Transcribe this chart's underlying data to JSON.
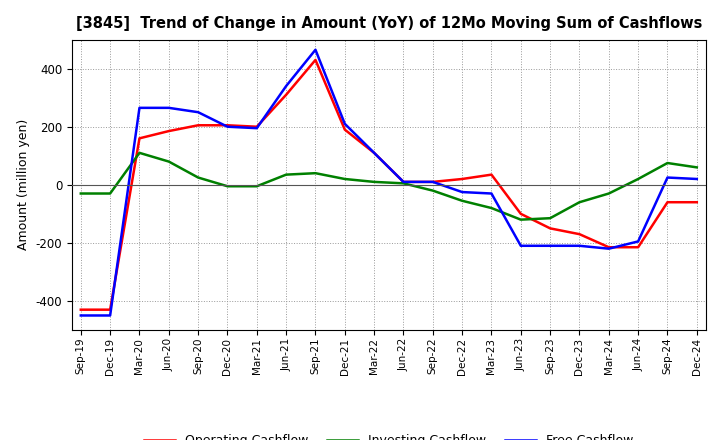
{
  "title": "[3845]  Trend of Change in Amount (YoY) of 12Mo Moving Sum of Cashflows",
  "ylabel": "Amount (million yen)",
  "x_labels": [
    "Sep-19",
    "Dec-19",
    "Mar-20",
    "Jun-20",
    "Sep-20",
    "Dec-20",
    "Mar-21",
    "Jun-21",
    "Sep-21",
    "Dec-21",
    "Mar-22",
    "Jun-22",
    "Sep-22",
    "Dec-22",
    "Mar-23",
    "Jun-23",
    "Sep-23",
    "Dec-23",
    "Mar-24",
    "Jun-24",
    "Sep-24",
    "Dec-24"
  ],
  "operating": [
    -430,
    -430,
    160,
    185,
    205,
    205,
    200,
    310,
    430,
    190,
    110,
    10,
    10,
    20,
    35,
    -100,
    -150,
    -170,
    -215,
    -215,
    -60,
    -60
  ],
  "investing": [
    -30,
    -30,
    110,
    80,
    25,
    -5,
    -5,
    35,
    40,
    20,
    10,
    5,
    -20,
    -55,
    -80,
    -120,
    -115,
    -60,
    -30,
    20,
    75,
    60
  ],
  "free": [
    -450,
    -450,
    265,
    265,
    250,
    200,
    195,
    340,
    465,
    210,
    110,
    10,
    10,
    -25,
    -30,
    -210,
    -210,
    -210,
    -220,
    -195,
    25,
    20
  ],
  "operating_color": "#FF0000",
  "investing_color": "#008000",
  "free_color": "#0000FF",
  "ylim": [
    -500,
    500
  ],
  "yticks": [
    -400,
    -200,
    0,
    200,
    400
  ],
  "bg_color": "#FFFFFF",
  "grid_color": "#AAAAAA",
  "legend_labels": [
    "Operating Cashflow",
    "Investing Cashflow",
    "Free Cashflow"
  ]
}
